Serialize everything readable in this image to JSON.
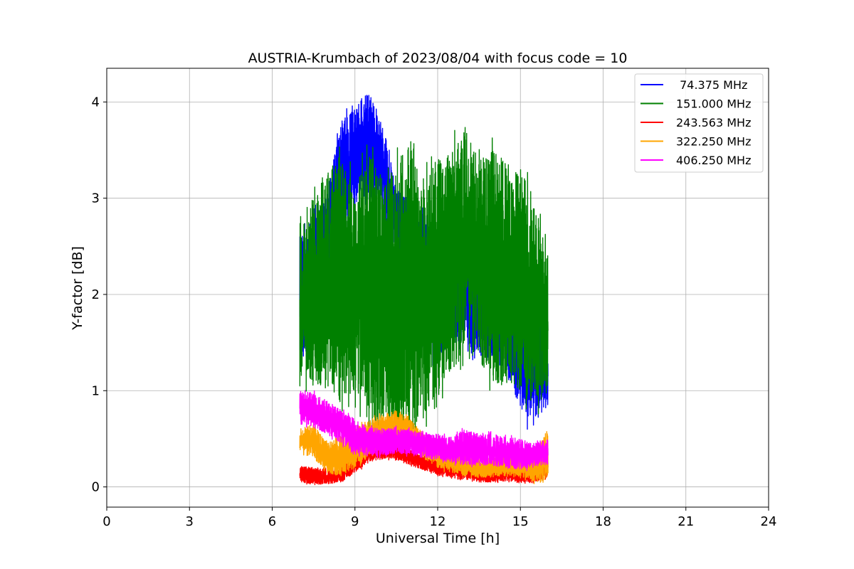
{
  "chart_data": {
    "type": "line",
    "title": "AUSTRIA-Krumbach of 2023/08/04 with focus code = 10",
    "xlabel": "Universal Time [h]",
    "ylabel": "Y-factor [dB]",
    "xlim": [
      0,
      24
    ],
    "ylim": [
      -0.21,
      4.35
    ],
    "xticks": [
      0,
      3,
      6,
      9,
      12,
      15,
      18,
      21,
      24
    ],
    "yticks": [
      0,
      1,
      2,
      3,
      4
    ],
    "xtick_labels": [
      "0",
      "3",
      "6",
      "9",
      "12",
      "15",
      "18",
      "21",
      "24"
    ],
    "ytick_labels": [
      "0",
      "1",
      "2",
      "3",
      "4"
    ],
    "grid": true,
    "legend_position": "top-right",
    "x_range": [
      7.0,
      16.0
    ],
    "series": [
      {
        "name": " 74.375 MHz",
        "color": "#0000ff",
        "x": [
          7.0,
          7.5,
          8.0,
          8.5,
          9.0,
          9.5,
          10.0,
          10.5,
          11.0,
          11.5,
          12.0,
          12.5,
          13.0,
          13.5,
          14.0,
          14.5,
          15.0,
          15.5,
          16.0
        ],
        "low": [
          1.3,
          1.5,
          1.8,
          2.6,
          2.9,
          3.0,
          2.8,
          2.4,
          2.0,
          1.4,
          1.3,
          1.5,
          1.5,
          1.3,
          1.3,
          1.2,
          0.8,
          0.6,
          0.9
        ],
        "high": [
          2.6,
          2.8,
          3.1,
          3.8,
          3.95,
          4.1,
          3.8,
          3.1,
          3.0,
          2.9,
          2.6,
          2.4,
          2.5,
          2.4,
          2.3,
          2.5,
          2.3,
          2.0,
          1.7
        ]
      },
      {
        "name": "151.000 MHz",
        "color": "#008000",
        "x": [
          7.0,
          7.5,
          8.0,
          8.5,
          9.0,
          9.5,
          10.0,
          10.5,
          11.0,
          11.5,
          12.0,
          12.5,
          13.0,
          13.5,
          14.0,
          14.5,
          15.0,
          15.5,
          16.0
        ],
        "low": [
          1.1,
          1.1,
          1.0,
          0.9,
          0.9,
          0.7,
          0.6,
          0.5,
          0.6,
          0.7,
          1.0,
          1.2,
          1.4,
          1.3,
          1.1,
          1.0,
          1.0,
          0.8,
          1.0
        ],
        "high": [
          2.8,
          3.0,
          3.3,
          3.4,
          3.1,
          3.5,
          3.2,
          3.3,
          3.8,
          3.2,
          3.4,
          3.5,
          3.7,
          3.4,
          3.5,
          3.4,
          3.3,
          3.0,
          2.4
        ]
      },
      {
        "name": "243.563 MHz",
        "color": "#ff0000",
        "x": [
          7.0,
          7.5,
          8.0,
          8.5,
          9.0,
          9.5,
          10.0,
          10.5,
          11.0,
          11.5,
          12.0,
          12.5,
          13.0,
          13.5,
          14.0,
          14.5,
          15.0,
          15.5,
          16.0
        ],
        "low": [
          0.05,
          0.02,
          0.03,
          0.05,
          0.15,
          0.25,
          0.3,
          0.28,
          0.22,
          0.18,
          0.12,
          0.1,
          0.08,
          0.05,
          0.05,
          0.06,
          0.05,
          0.04,
          0.1
        ],
        "high": [
          0.22,
          0.2,
          0.18,
          0.22,
          0.35,
          0.45,
          0.5,
          0.45,
          0.38,
          0.32,
          0.3,
          0.28,
          0.25,
          0.2,
          0.22,
          0.2,
          0.2,
          0.18,
          0.3
        ]
      },
      {
        "name": "322.250 MHz",
        "color": "#ffa500",
        "x": [
          7.0,
          7.5,
          8.0,
          8.5,
          9.0,
          9.5,
          10.0,
          10.5,
          11.0,
          11.5,
          12.0,
          12.5,
          13.0,
          13.5,
          14.0,
          14.5,
          15.0,
          15.5,
          16.0
        ],
        "low": [
          0.35,
          0.3,
          0.15,
          0.1,
          0.2,
          0.3,
          0.45,
          0.5,
          0.4,
          0.3,
          0.2,
          0.15,
          0.12,
          0.1,
          0.1,
          0.12,
          0.1,
          0.05,
          0.1
        ],
        "high": [
          0.6,
          0.65,
          0.45,
          0.55,
          0.6,
          0.7,
          0.75,
          0.8,
          0.7,
          0.55,
          0.45,
          0.4,
          0.35,
          0.3,
          0.3,
          0.35,
          0.3,
          0.35,
          0.6
        ]
      },
      {
        "name": "406.250 MHz",
        "color": "#ff00ff",
        "x": [
          7.0,
          7.5,
          8.0,
          8.5,
          9.0,
          9.5,
          10.0,
          10.5,
          11.0,
          11.5,
          12.0,
          12.5,
          13.0,
          13.5,
          14.0,
          14.5,
          15.0,
          15.5,
          16.0
        ],
        "low": [
          0.65,
          0.62,
          0.55,
          0.45,
          0.35,
          0.32,
          0.32,
          0.35,
          0.33,
          0.3,
          0.28,
          0.25,
          0.22,
          0.22,
          0.22,
          0.2,
          0.18,
          0.2,
          0.25
        ],
        "high": [
          1.0,
          0.98,
          0.9,
          0.8,
          0.7,
          0.62,
          0.6,
          0.62,
          0.6,
          0.58,
          0.55,
          0.52,
          0.6,
          0.55,
          0.55,
          0.52,
          0.5,
          0.45,
          0.5
        ]
      }
    ]
  }
}
